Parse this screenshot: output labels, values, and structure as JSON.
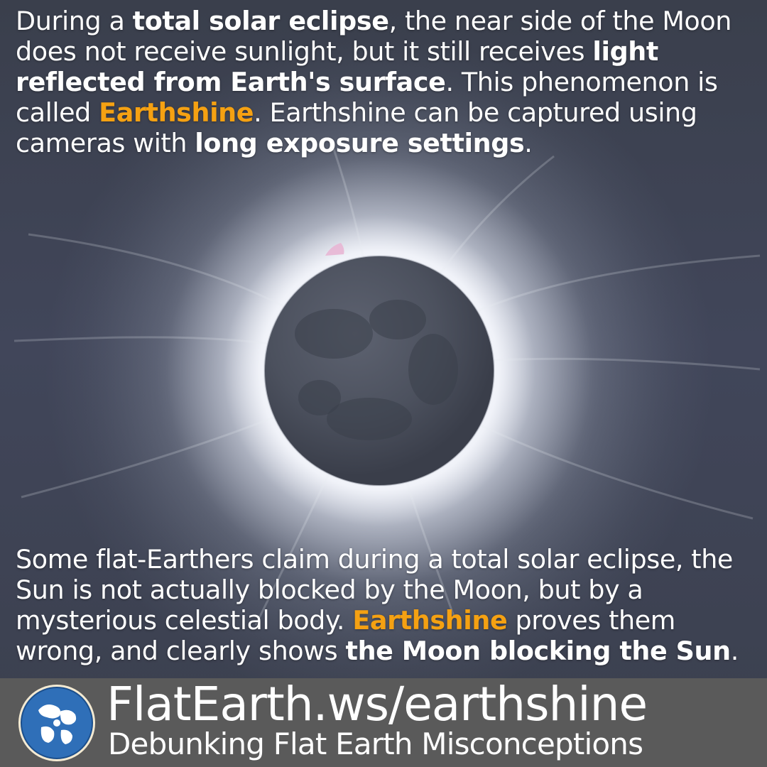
{
  "intro": {
    "p1": "During a ",
    "b1": "total solar eclipse",
    "p2": ", the near side of the Moon does not receive sunlight, but it still receives ",
    "b2": "light reflected from Earth's surface",
    "p3": ". This phenomenon is called ",
    "highlight": "Earthshine",
    "p4": ". Earthshine can be captured using cameras with ",
    "b3": "long exposure settings",
    "p5": "."
  },
  "claim": {
    "p1": "Some flat-Earthers claim during a total solar eclipse, the Sun is not actually blocked by the Moon, but by a mysterious celestial body. ",
    "highlight": "Earthshine",
    "p2": " proves them wrong, and clearly shows ",
    "b1": "the Moon blocking the Sun",
    "p3": "."
  },
  "footer": {
    "url": "FlatEarth.ws/earthshine",
    "tagline": "Debunking Flat Earth Misconceptions",
    "logo_icon": "globe-icon"
  },
  "colors": {
    "highlight": "#f5a112",
    "footer_bar": "#5a5a5a",
    "sky": "#3d4250"
  }
}
